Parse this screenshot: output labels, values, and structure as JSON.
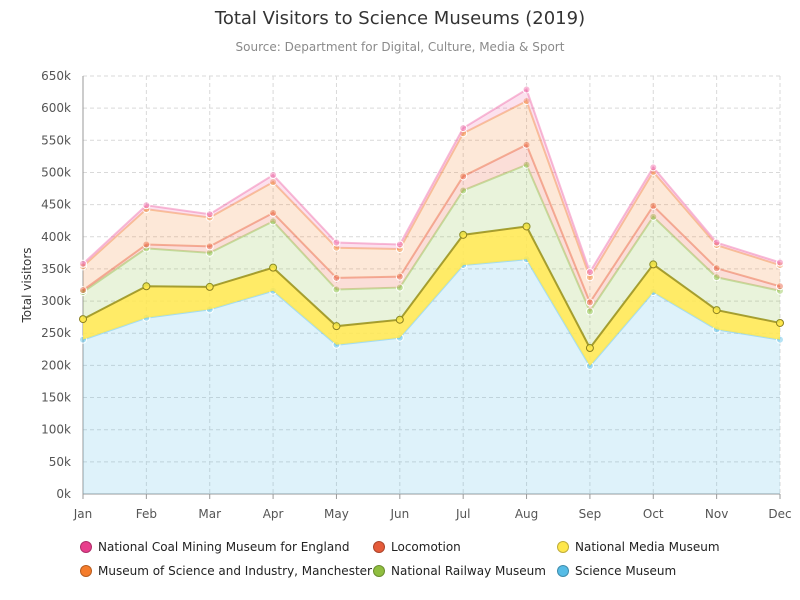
{
  "title": "Total Visitors to Science Museums (2019)",
  "subtitle": "Source: Department for Digital, Culture, Media & Sport",
  "chart_data": {
    "type": "area",
    "stacked": true,
    "categories": [
      "Jan",
      "Feb",
      "Mar",
      "Apr",
      "May",
      "Jun",
      "Jul",
      "Aug",
      "Sep",
      "Oct",
      "Nov",
      "Dec"
    ],
    "ylabel": "Total visitors",
    "xlabel": "",
    "ylim": [
      0,
      650000
    ],
    "yticks": [
      {
        "value": 0,
        "label": "0k"
      },
      {
        "value": 50000,
        "label": "50k"
      },
      {
        "value": 100000,
        "label": "100k"
      },
      {
        "value": 150000,
        "label": "150k"
      },
      {
        "value": 200000,
        "label": "200k"
      },
      {
        "value": 250000,
        "label": "250k"
      },
      {
        "value": 300000,
        "label": "300k"
      },
      {
        "value": 350000,
        "label": "350k"
      },
      {
        "value": 400000,
        "label": "400k"
      },
      {
        "value": 450000,
        "label": "450k"
      },
      {
        "value": 500000,
        "label": "500k"
      },
      {
        "value": 550000,
        "label": "550k"
      },
      {
        "value": 600000,
        "label": "600k"
      },
      {
        "value": 650000,
        "label": "650k"
      }
    ],
    "grid": true,
    "legend_position": "bottom",
    "series": [
      {
        "name": "Science Museum",
        "color": "#5bc0e8",
        "values": [
          240000,
          274000,
          287000,
          316000,
          232000,
          243000,
          356000,
          365000,
          199000,
          314000,
          256000,
          240000
        ]
      },
      {
        "name": "National Media Museum",
        "color": "#ffe74c",
        "values": [
          32000,
          49000,
          35000,
          36000,
          29000,
          28000,
          47000,
          51000,
          28000,
          43000,
          30000,
          26000
        ]
      },
      {
        "name": "National Railway Museum",
        "color": "#8fc44a",
        "values": [
          42000,
          59000,
          53000,
          72000,
          57000,
          50000,
          69000,
          96000,
          57000,
          74000,
          51000,
          50000
        ]
      },
      {
        "name": "Locomotion",
        "color": "#e95a3b",
        "values": [
          3000,
          6000,
          10000,
          13000,
          18000,
          17000,
          22000,
          31000,
          14000,
          17000,
          14000,
          7000
        ]
      },
      {
        "name": "Museum of Science and Industry, Manchester",
        "color": "#f58b3d",
        "values": [
          37000,
          55000,
          45000,
          48000,
          47000,
          43000,
          67000,
          68000,
          39000,
          53000,
          36000,
          33000
        ]
      },
      {
        "name": "National Coal Mining Museum for England",
        "color": "#f06ba8",
        "values": [
          4000,
          6000,
          5000,
          11000,
          8000,
          7000,
          8000,
          18000,
          8000,
          7000,
          4000,
          4000
        ]
      }
    ]
  },
  "legend": [
    {
      "label": "National Coal Mining Museum for England",
      "color": "#e83e8c"
    },
    {
      "label": "Locomotion",
      "color": "#e55b3a"
    },
    {
      "label": "National Media Museum",
      "color": "#ffe74c"
    },
    {
      "label": "Museum of Science and Industry, Manchester",
      "color": "#f57c2b"
    },
    {
      "label": "National Railway Museum",
      "color": "#8fbe3f"
    },
    {
      "label": "Science Museum",
      "color": "#56bce6"
    }
  ]
}
